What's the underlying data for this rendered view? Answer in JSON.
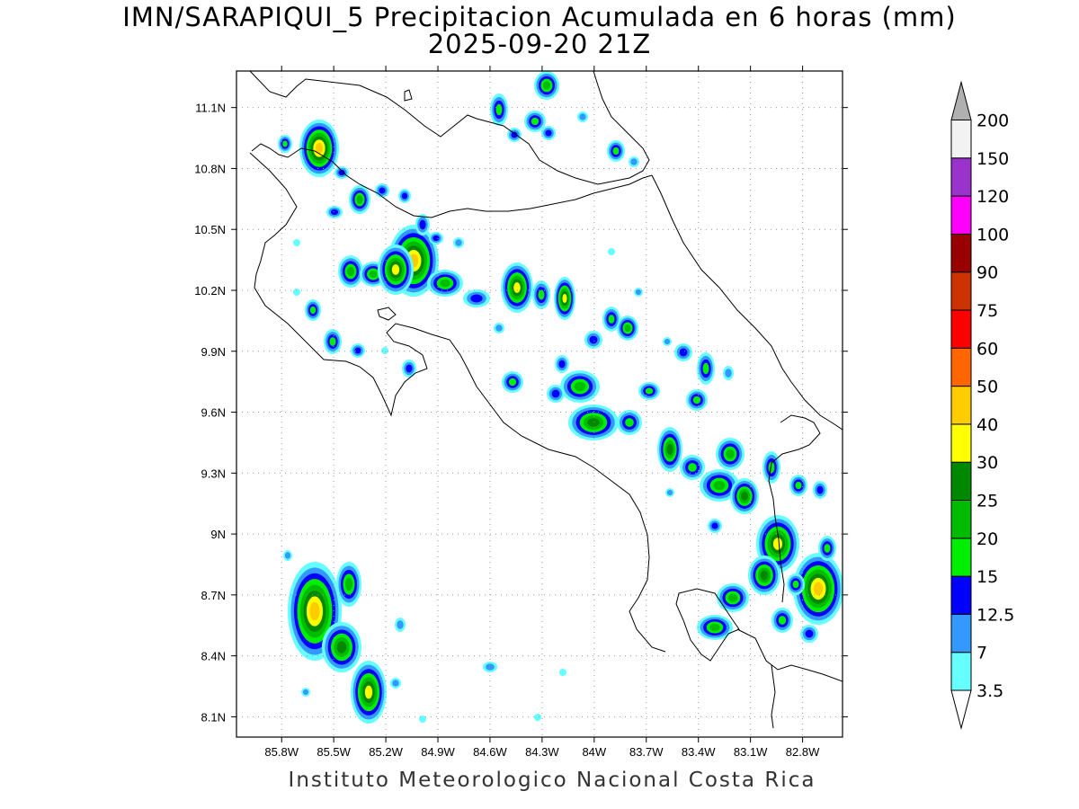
{
  "title": {
    "line1": "IMN/SARAPIQUI_5 Precipitacion Acumulada en 6 horas (mm)",
    "line2": "2025-09-20 21Z"
  },
  "footer": "Instituto Meteorologico Nacional Costa Rica",
  "map": {
    "lon_range": [
      -86.06,
      -82.57
    ],
    "lat_range": [
      8.0,
      11.28
    ],
    "lon_ticks": [
      "85.8W",
      "85.5W",
      "85.2W",
      "84.9W",
      "84.6W",
      "84.3W",
      "84W",
      "83.7W",
      "83.4W",
      "83.1W",
      "82.8W"
    ],
    "lon_tick_values": [
      -85.8,
      -85.5,
      -85.2,
      -84.9,
      -84.6,
      -84.3,
      -84.0,
      -83.7,
      -83.4,
      -83.1,
      -82.8
    ],
    "lat_ticks": [
      "11.1N",
      "10.8N",
      "10.5N",
      "10.2N",
      "9.9N",
      "9.6N",
      "9.3N",
      "9N",
      "8.7N",
      "8.4N",
      "8.1N"
    ],
    "lat_tick_values": [
      11.1,
      10.8,
      10.5,
      10.2,
      9.9,
      9.6,
      9.3,
      9.0,
      8.7,
      8.4,
      8.1
    ],
    "grid": "dotted"
  },
  "colorbar": {
    "labels": [
      "3.5",
      "7",
      "12.5",
      "15",
      "20",
      "25",
      "30",
      "40",
      "50",
      "60",
      "75",
      "90",
      "100",
      "120",
      "150",
      "200"
    ],
    "colors": [
      "#ffffff",
      "#66ffff",
      "#3399ff",
      "#0000ff",
      "#00ee00",
      "#00bb00",
      "#008800",
      "#ffff00",
      "#ffcc00",
      "#ff6600",
      "#ff0000",
      "#cc3300",
      "#990000",
      "#ff00ff",
      "#9933cc",
      "#f2f2f2",
      "#b0b0b0"
    ]
  }
}
